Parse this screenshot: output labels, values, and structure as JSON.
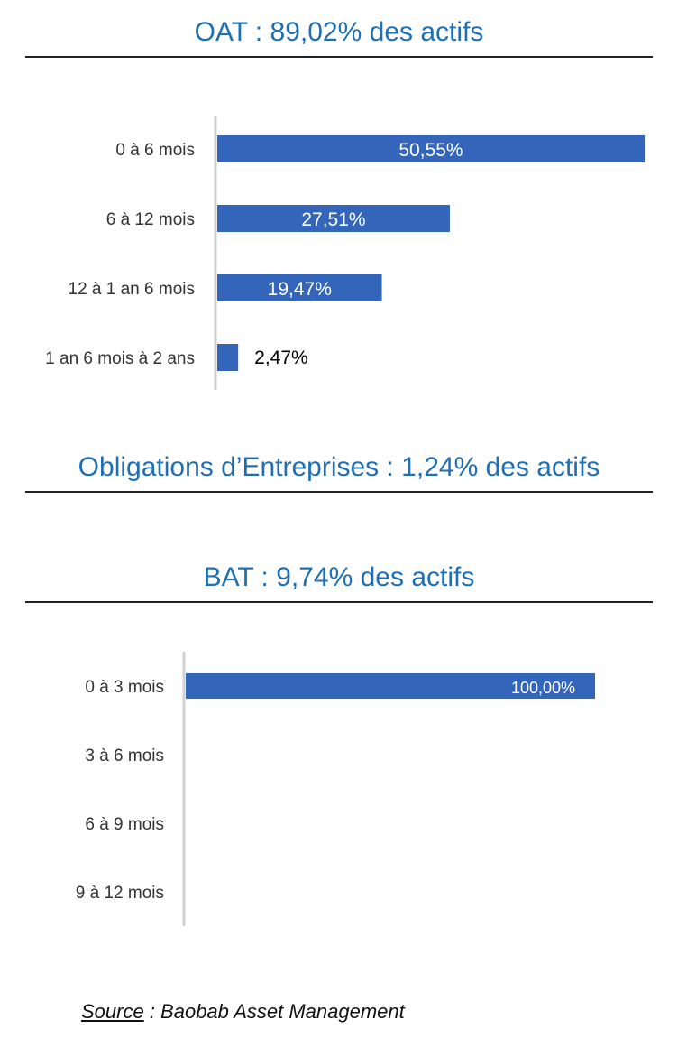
{
  "sections": [
    {
      "title": "OAT :  89,02% des actifs"
    },
    {
      "title": "Obligations d’Entreprises :  1,24% des actifs"
    },
    {
      "title": "BAT :  9,74% des actifs"
    }
  ],
  "chart_data": [
    {
      "type": "bar",
      "orientation": "horizontal",
      "categories": [
        "0 à 6 mois",
        "6 à 12 mois",
        "12 à 1 an 6 mois",
        "1 an  6 mois à 2 ans"
      ],
      "values": [
        50.55,
        27.51,
        19.47,
        2.47
      ],
      "data_labels": [
        "50,55%",
        "27,51%",
        "19,47%",
        "2,47%"
      ],
      "xlim": [
        0,
        50.55
      ],
      "grid": false,
      "bar_color": "#3366bb"
    },
    {
      "type": "bar",
      "orientation": "horizontal",
      "categories": [
        "0 à 3 mois",
        "3 à 6 mois",
        "6 à 9 mois",
        "9 à 12 mois"
      ],
      "values": [
        100,
        null,
        null,
        null
      ],
      "data_labels": [
        "100,00%",
        "",
        "",
        ""
      ],
      "xlim": [
        0,
        100
      ],
      "grid": false,
      "bar_color": "#3366bb"
    }
  ],
  "source": {
    "key": "Source",
    "text": " : Baobab Asset Management"
  }
}
